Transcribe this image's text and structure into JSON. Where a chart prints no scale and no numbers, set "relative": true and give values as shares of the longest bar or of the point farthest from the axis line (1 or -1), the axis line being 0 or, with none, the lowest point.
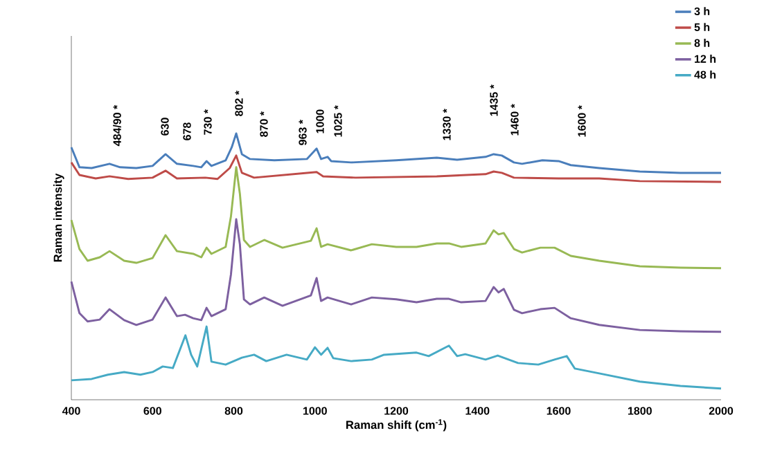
{
  "chart_data": {
    "type": "line",
    "relative": true,
    "xlabel": "Raman shift (cm$^{-1}$)",
    "ylabel": "Raman intensity",
    "xlim": [
      400,
      2000
    ],
    "xticks": [
      400,
      600,
      800,
      1000,
      1200,
      1400,
      1600,
      1800,
      2000
    ],
    "grid": false,
    "legend": "top right",
    "annotations": [
      "484/90 *",
      "630",
      "678",
      "730 *",
      "802 *",
      "870 *",
      "963 *",
      "1000",
      "1025 *",
      "1330 *",
      "1435 *",
      "1460 *",
      "1600 *"
    ],
    "series": [
      {
        "name": "3 h",
        "color": "#4a7ebb",
        "x": [
          400,
          420,
          450,
          494,
          520,
          560,
          600,
          632,
          660,
          700,
          720,
          733,
          745,
          780,
          795,
          806,
          820,
          840,
          900,
          980,
          1004,
          1015,
          1031,
          1040,
          1089,
          1200,
          1300,
          1350,
          1420,
          1440,
          1460,
          1490,
          1510,
          1560,
          1600,
          1630,
          1700,
          1800,
          1900,
          2000
        ],
        "values": [
          0.948,
          0.873,
          0.87,
          0.886,
          0.873,
          0.87,
          0.878,
          0.922,
          0.886,
          0.878,
          0.873,
          0.896,
          0.878,
          0.899,
          0.948,
          1,
          0.922,
          0.904,
          0.899,
          0.904,
          0.943,
          0.904,
          0.912,
          0.896,
          0.891,
          0.899,
          0.909,
          0.901,
          0.912,
          0.922,
          0.917,
          0.891,
          0.886,
          0.899,
          0.896,
          0.881,
          0.87,
          0.857,
          0.852,
          0.852
        ]
      },
      {
        "name": "5 h",
        "color": "#be4b48",
        "x": [
          400,
          420,
          460,
          494,
          540,
          600,
          632,
          660,
          730,
          760,
          790,
          806,
          820,
          850,
          1004,
          1020,
          1100,
          1300,
          1420,
          1440,
          1460,
          1490,
          1600,
          1700,
          1800,
          2000
        ],
        "values": [
          0.891,
          0.844,
          0.831,
          0.839,
          0.829,
          0.834,
          0.86,
          0.831,
          0.834,
          0.829,
          0.87,
          0.917,
          0.852,
          0.834,
          0.855,
          0.839,
          0.834,
          0.839,
          0.847,
          0.857,
          0.852,
          0.834,
          0.831,
          0.831,
          0.821,
          0.818
        ]
      },
      {
        "name": "8 h",
        "color": "#98b954",
        "x": [
          400,
          420,
          440,
          470,
          494,
          530,
          560,
          600,
          632,
          660,
          700,
          720,
          733,
          745,
          780,
          793,
          806,
          815,
          825,
          840,
          875,
          920,
          990,
          1004,
          1015,
          1031,
          1089,
          1140,
          1200,
          1250,
          1300,
          1330,
          1360,
          1420,
          1440,
          1452,
          1465,
          1490,
          1510,
          1555,
          1590,
          1630,
          1700,
          1800,
          1900,
          2000
        ],
        "values": [
          0.675,
          0.566,
          0.522,
          0.535,
          0.558,
          0.522,
          0.514,
          0.532,
          0.618,
          0.558,
          0.548,
          0.535,
          0.571,
          0.548,
          0.574,
          0.688,
          0.873,
          0.774,
          0.6,
          0.574,
          0.6,
          0.571,
          0.597,
          0.644,
          0.574,
          0.584,
          0.561,
          0.584,
          0.574,
          0.574,
          0.587,
          0.587,
          0.574,
          0.587,
          0.636,
          0.621,
          0.626,
          0.566,
          0.553,
          0.571,
          0.571,
          0.54,
          0.522,
          0.501,
          0.496,
          0.494
        ]
      },
      {
        "name": "12 h",
        "color": "#7d60a0",
        "x": [
          400,
          420,
          440,
          470,
          494,
          530,
          560,
          600,
          632,
          660,
          680,
          700,
          720,
          733,
          745,
          780,
          793,
          806,
          815,
          825,
          840,
          875,
          920,
          990,
          1004,
          1015,
          1031,
          1089,
          1140,
          1200,
          1250,
          1300,
          1330,
          1360,
          1420,
          1440,
          1452,
          1465,
          1490,
          1510,
          1555,
          1590,
          1630,
          1700,
          1800,
          1900,
          2000
        ],
        "values": [
          0.444,
          0.325,
          0.294,
          0.301,
          0.34,
          0.299,
          0.281,
          0.301,
          0.384,
          0.314,
          0.319,
          0.306,
          0.299,
          0.345,
          0.314,
          0.34,
          0.47,
          0.678,
          0.584,
          0.377,
          0.358,
          0.384,
          0.353,
          0.392,
          0.457,
          0.371,
          0.384,
          0.358,
          0.384,
          0.377,
          0.366,
          0.379,
          0.379,
          0.366,
          0.371,
          0.423,
          0.403,
          0.416,
          0.338,
          0.325,
          0.34,
          0.345,
          0.306,
          0.281,
          0.262,
          0.257,
          0.255
        ]
      },
      {
        "name": "48 h",
        "color": "#46aac5",
        "x": [
          400,
          450,
          490,
          530,
          570,
          600,
          625,
          650,
          681,
          695,
          710,
          733,
          745,
          780,
          820,
          850,
          880,
          930,
          980,
          1000,
          1015,
          1031,
          1045,
          1089,
          1140,
          1170,
          1250,
          1280,
          1330,
          1350,
          1370,
          1420,
          1450,
          1500,
          1550,
          1590,
          1620,
          1640,
          1700,
          1800,
          1900,
          2000
        ],
        "values": [
          0.073,
          0.078,
          0.094,
          0.104,
          0.094,
          0.104,
          0.125,
          0.119,
          0.242,
          0.169,
          0.125,
          0.275,
          0.143,
          0.132,
          0.158,
          0.169,
          0.145,
          0.169,
          0.151,
          0.197,
          0.169,
          0.195,
          0.156,
          0.145,
          0.151,
          0.169,
          0.177,
          0.164,
          0.203,
          0.164,
          0.171,
          0.151,
          0.166,
          0.138,
          0.132,
          0.151,
          0.164,
          0.117,
          0.099,
          0.068,
          0.052,
          0.042
        ]
      }
    ]
  }
}
